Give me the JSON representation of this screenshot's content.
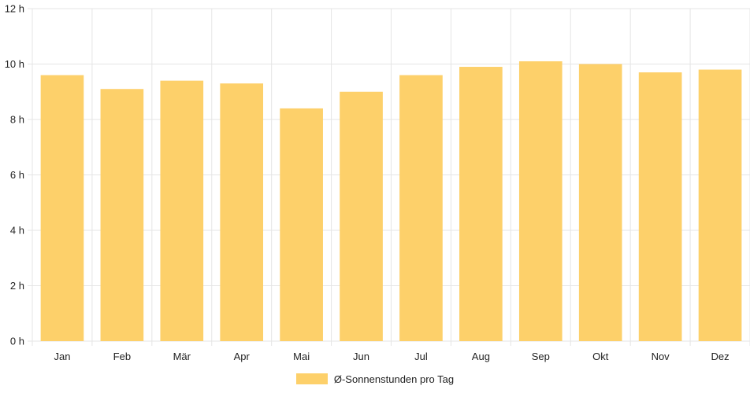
{
  "chart_data": {
    "type": "bar",
    "categories": [
      "Jan",
      "Feb",
      "Mär",
      "Apr",
      "Mai",
      "Jun",
      "Jul",
      "Aug",
      "Sep",
      "Okt",
      "Nov",
      "Dez"
    ],
    "series": [
      {
        "name": "Ø-Sonnenstunden pro Tag",
        "values": [
          9.6,
          9.1,
          9.4,
          9.3,
          8.4,
          9.0,
          9.6,
          9.9,
          10.1,
          10.0,
          9.7,
          9.8
        ],
        "color": "#fdd06a"
      }
    ],
    "yticks": [
      "0 h",
      "2 h",
      "4 h",
      "6 h",
      "8 h",
      "10 h",
      "12 h"
    ],
    "ylim": [
      0,
      12
    ],
    "ytick_step": 2,
    "grid": true,
    "grid_color": "#e5e5e5",
    "legend_position": "bottom"
  }
}
